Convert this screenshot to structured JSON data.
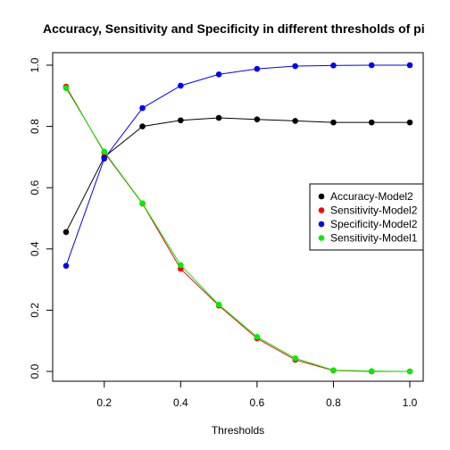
{
  "chart_data": {
    "type": "line",
    "title": "Accuracy, Sensitivity and Specificity in different thresholds of pi",
    "xlabel": "Thresholds",
    "ylabel": "",
    "xlim": [
      0.1,
      1.0
    ],
    "ylim": [
      0.0,
      1.0
    ],
    "x_ticks": [
      "0.2",
      "0.4",
      "0.6",
      "0.8",
      "1.0"
    ],
    "y_ticks": [
      "0.0",
      "0.2",
      "0.4",
      "0.6",
      "0.8",
      "1.0"
    ],
    "grid": false,
    "legend_position": "right",
    "x": [
      0.1,
      0.2,
      0.3,
      0.4,
      0.5,
      0.6,
      0.7,
      0.8,
      0.9,
      1.0
    ],
    "series": [
      {
        "name": "Accuracy-Model2",
        "color": "#000000",
        "values": [
          0.455,
          0.7,
          0.8,
          0.82,
          0.828,
          0.823,
          0.818,
          0.813,
          0.813,
          0.813
        ]
      },
      {
        "name": "Sensitivity-Model2",
        "color": "#ff0000",
        "values": [
          0.93,
          0.715,
          0.548,
          0.335,
          0.215,
          0.108,
          0.038,
          0.003,
          0.0,
          0.0
        ]
      },
      {
        "name": "Specificity-Model2",
        "color": "#0000ff",
        "values": [
          0.345,
          0.695,
          0.86,
          0.933,
          0.97,
          0.988,
          0.997,
          0.999,
          1.0,
          1.0
        ]
      },
      {
        "name": "Sensitivity-Model1",
        "color": "#00ee00",
        "values": [
          0.925,
          0.718,
          0.549,
          0.347,
          0.218,
          0.113,
          0.043,
          0.004,
          0.001,
          0.0
        ]
      }
    ]
  }
}
